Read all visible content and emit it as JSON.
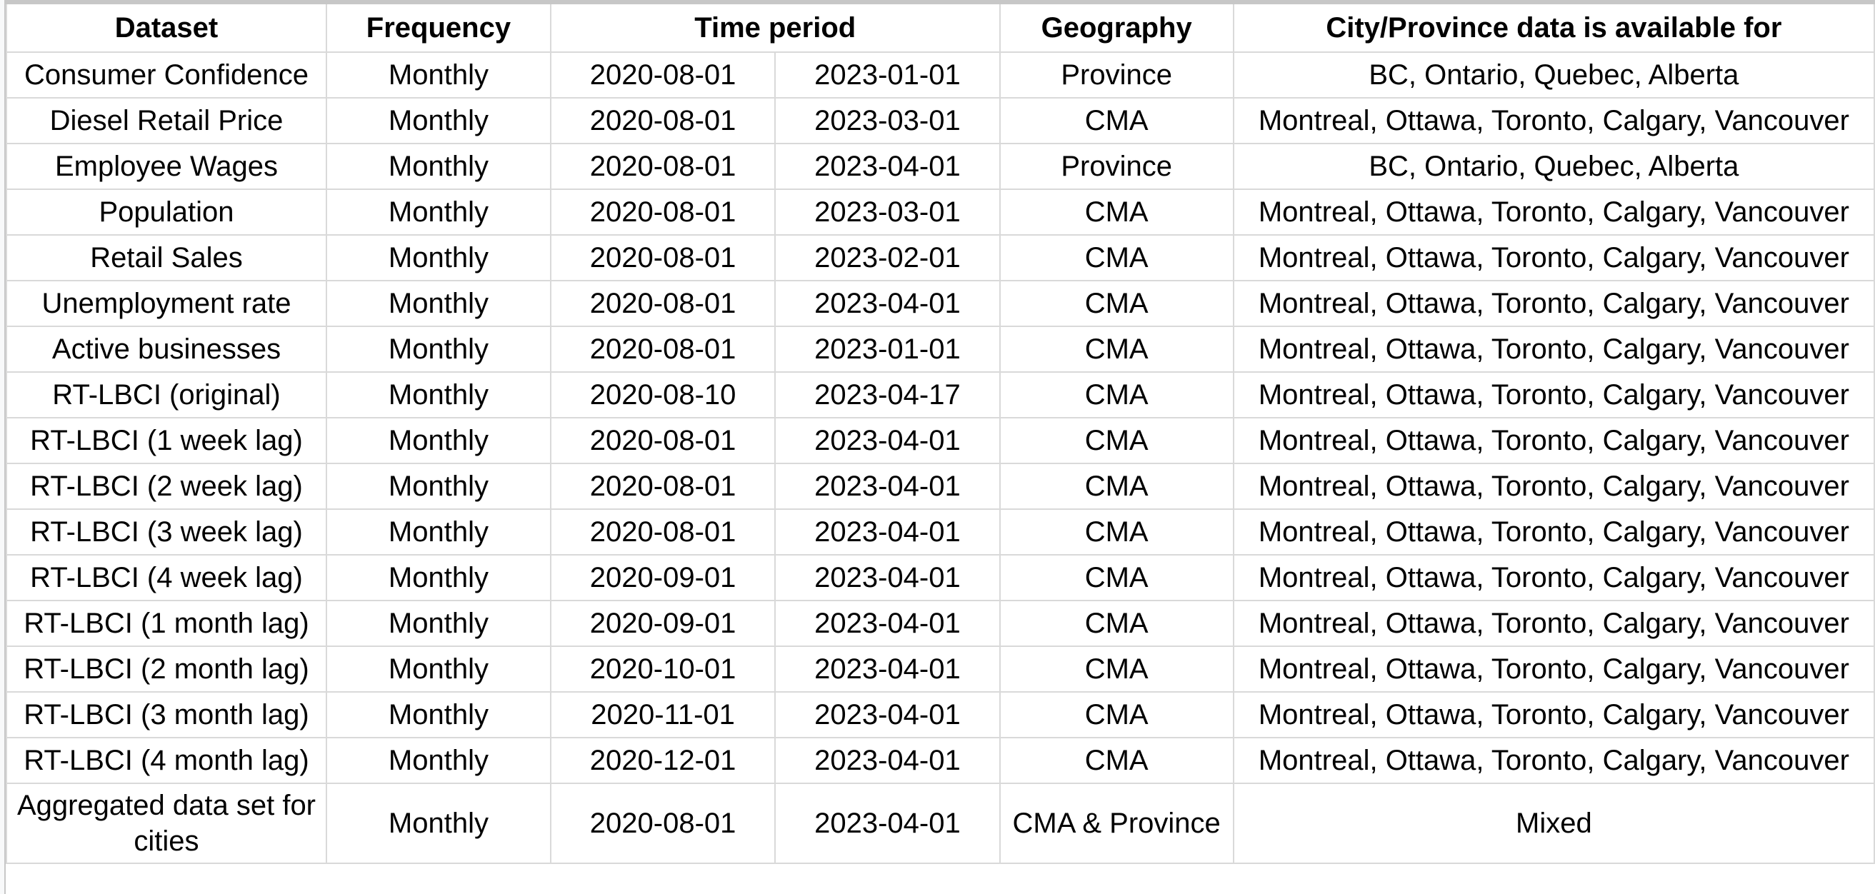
{
  "table": {
    "headers": {
      "dataset": "Dataset",
      "frequency": "Frequency",
      "time_period": "Time period",
      "geography": "Geography",
      "city_province": "City/Province data is available for"
    },
    "rows": [
      {
        "dataset": "Consumer Confidence",
        "frequency": "Monthly",
        "start": "2020-08-01",
        "end": "2023-01-01",
        "geography": "Province",
        "cities": "BC, Ontario, Quebec, Alberta"
      },
      {
        "dataset": "Diesel Retail Price",
        "frequency": "Monthly",
        "start": "2020-08-01",
        "end": "2023-03-01",
        "geography": "CMA",
        "cities": "Montreal, Ottawa, Toronto, Calgary, Vancouver"
      },
      {
        "dataset": "Employee Wages",
        "frequency": "Monthly",
        "start": "2020-08-01",
        "end": "2023-04-01",
        "geography": "Province",
        "cities": "BC, Ontario, Quebec, Alberta"
      },
      {
        "dataset": "Population",
        "frequency": "Monthly",
        "start": "2020-08-01",
        "end": "2023-03-01",
        "geography": "CMA",
        "cities": "Montreal, Ottawa, Toronto, Calgary, Vancouver"
      },
      {
        "dataset": "Retail Sales",
        "frequency": "Monthly",
        "start": "2020-08-01",
        "end": "2023-02-01",
        "geography": "CMA",
        "cities": "Montreal, Ottawa, Toronto, Calgary, Vancouver"
      },
      {
        "dataset": "Unemployment rate",
        "frequency": "Monthly",
        "start": "2020-08-01",
        "end": "2023-04-01",
        "geography": "CMA",
        "cities": "Montreal, Ottawa, Toronto, Calgary, Vancouver"
      },
      {
        "dataset": "Active businesses",
        "frequency": "Monthly",
        "start": "2020-08-01",
        "end": "2023-01-01",
        "geography": "CMA",
        "cities": "Montreal, Ottawa, Toronto, Calgary, Vancouver"
      },
      {
        "dataset": "RT-LBCI (original)",
        "frequency": "Monthly",
        "start": "2020-08-10",
        "end": "2023-04-17",
        "geography": "CMA",
        "cities": "Montreal, Ottawa, Toronto, Calgary, Vancouver"
      },
      {
        "dataset": "RT-LBCI (1 week lag)",
        "frequency": "Monthly",
        "start": "2020-08-01",
        "end": "2023-04-01",
        "geography": "CMA",
        "cities": "Montreal, Ottawa, Toronto, Calgary, Vancouver"
      },
      {
        "dataset": "RT-LBCI (2 week lag)",
        "frequency": "Monthly",
        "start": "2020-08-01",
        "end": "2023-04-01",
        "geography": "CMA",
        "cities": "Montreal, Ottawa, Toronto, Calgary, Vancouver"
      },
      {
        "dataset": "RT-LBCI (3 week lag)",
        "frequency": "Monthly",
        "start": "2020-08-01",
        "end": "2023-04-01",
        "geography": "CMA",
        "cities": "Montreal, Ottawa, Toronto, Calgary, Vancouver"
      },
      {
        "dataset": "RT-LBCI (4 week lag)",
        "frequency": "Monthly",
        "start": "2020-09-01",
        "end": "2023-04-01",
        "geography": "CMA",
        "cities": "Montreal, Ottawa, Toronto, Calgary, Vancouver"
      },
      {
        "dataset": "RT-LBCI (1 month lag)",
        "frequency": "Monthly",
        "start": "2020-09-01",
        "end": "2023-04-01",
        "geography": "CMA",
        "cities": "Montreal, Ottawa, Toronto, Calgary, Vancouver"
      },
      {
        "dataset": "RT-LBCI (2 month lag)",
        "frequency": "Monthly",
        "start": "2020-10-01",
        "end": "2023-04-01",
        "geography": "CMA",
        "cities": "Montreal, Ottawa, Toronto, Calgary, Vancouver"
      },
      {
        "dataset": "RT-LBCI (3 month lag)",
        "frequency": "Monthly",
        "start": "2020-11-01",
        "end": "2023-04-01",
        "geography": "CMA",
        "cities": "Montreal, Ottawa, Toronto, Calgary, Vancouver"
      },
      {
        "dataset": "RT-LBCI (4 month lag)",
        "frequency": "Monthly",
        "start": "2020-12-01",
        "end": "2023-04-01",
        "geography": "CMA",
        "cities": "Montreal, Ottawa, Toronto, Calgary, Vancouver"
      },
      {
        "dataset": "Aggregated data set for cities",
        "frequency": "Monthly",
        "start": "2020-08-01",
        "end": "2023-04-01",
        "geography": "CMA & Province",
        "cities": "Mixed"
      }
    ]
  },
  "colors": {
    "grid_line": "#d9d9d9",
    "header_border": "#c7c7c7",
    "text": "#000000",
    "background": "#ffffff",
    "row_header_strip": "#f8f9fa"
  }
}
